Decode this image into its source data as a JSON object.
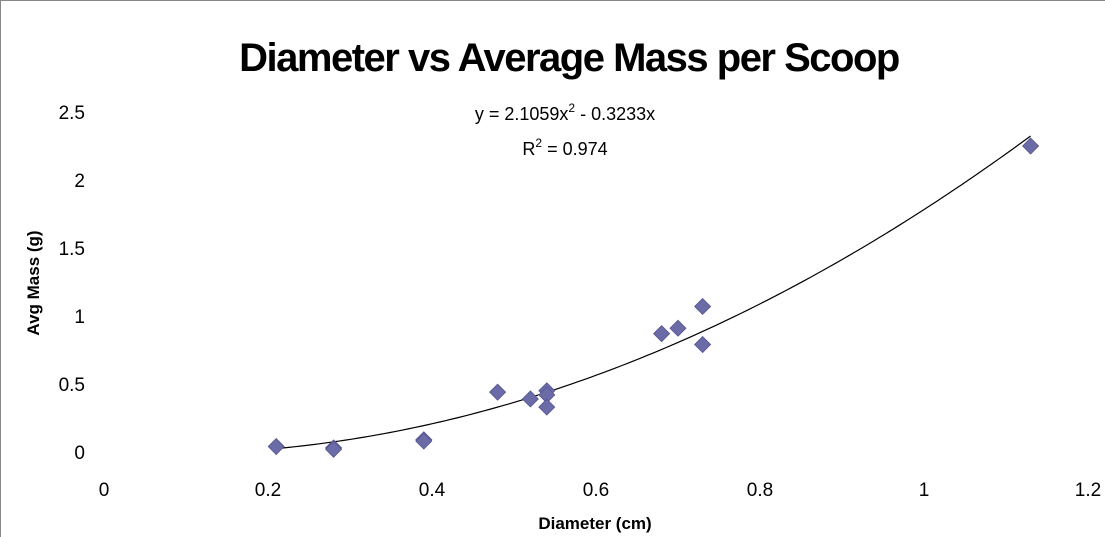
{
  "chart_data": {
    "type": "scatter",
    "title": "Diameter vs Average Mass per Scoop",
    "xlabel": "Diameter (cm)",
    "ylabel": "Avg Mass (g)",
    "xlim": [
      0,
      1.2
    ],
    "ylim": [
      0,
      2.5
    ],
    "x_ticks": [
      "0",
      "0.2",
      "0.4",
      "0.6",
      "0.8",
      "1",
      "1.2"
    ],
    "y_ticks": [
      "0",
      "0.5",
      "1",
      "1.5",
      "2",
      "2.5"
    ],
    "grid": false,
    "legend": "none",
    "marker_color": "#6b6ba8",
    "trendline": {
      "type": "polynomial",
      "coefficients": [
        2.1059,
        -0.3233,
        0
      ],
      "equation_text": "y = 2.1059x",
      "equation_tail": " - 0.3233x",
      "r2_text": "R",
      "r2_tail": " = 0.974",
      "superscript": "2"
    },
    "series": [
      {
        "x": [
          0.21,
          0.28,
          0.28,
          0.39,
          0.39,
          0.48,
          0.52,
          0.54,
          0.54,
          0.54,
          0.68,
          0.7,
          0.73,
          0.73,
          1.13
        ],
        "y": [
          0.04,
          0.03,
          0.02,
          0.09,
          0.08,
          0.44,
          0.39,
          0.45,
          0.42,
          0.33,
          0.87,
          0.91,
          1.07,
          0.79,
          2.25
        ]
      }
    ]
  }
}
